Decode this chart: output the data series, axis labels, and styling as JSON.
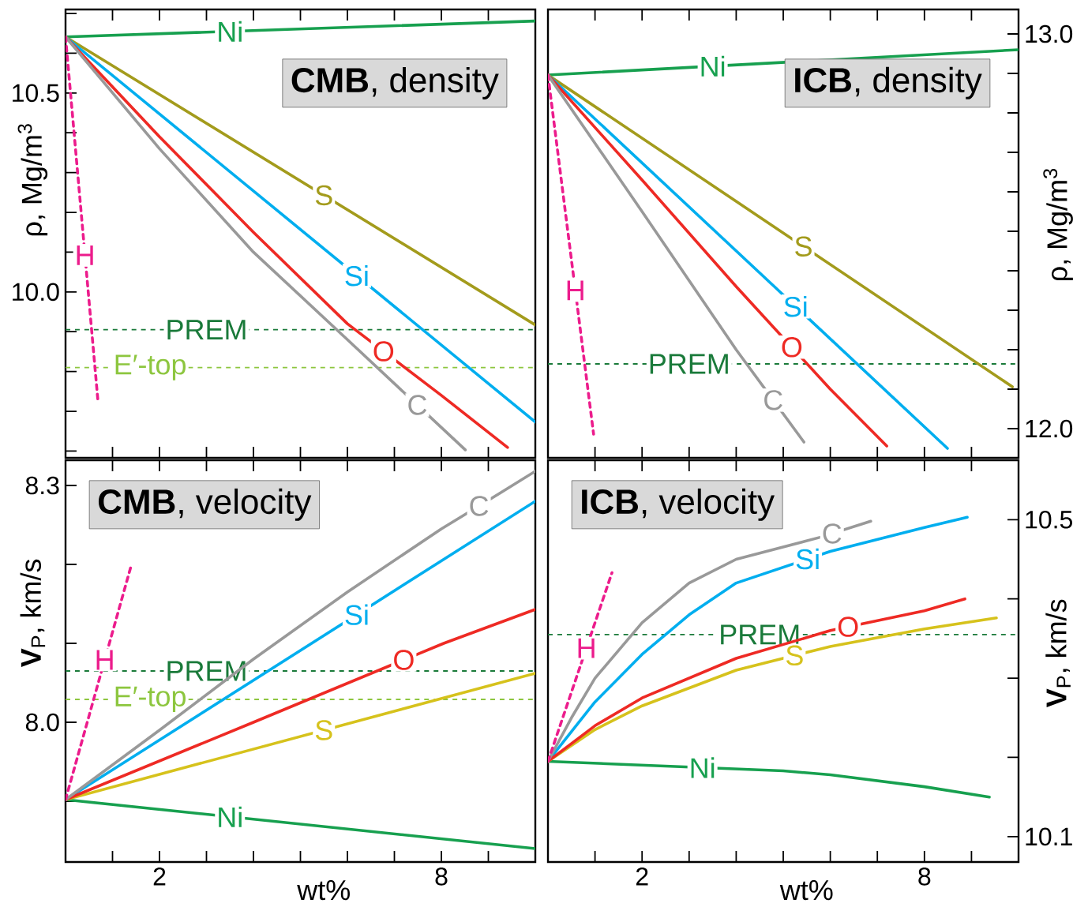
{
  "chart_data": [
    {
      "type": "line",
      "title": "**CMB**, density",
      "ylabel": "ρ, Mg/m$^{3}$",
      "xlim": [
        0,
        10
      ],
      "ylim": [
        9.583,
        10.71
      ],
      "tick_labels": "y",
      "xticks": [
        1,
        2,
        3,
        4,
        5,
        6,
        7,
        8,
        9
      ],
      "yticks": [
        {
          "value": 9.6,
          "label": null
        },
        {
          "value": 9.7,
          "label": null
        },
        {
          "value": 9.8,
          "label": null
        },
        {
          "value": 9.9,
          "label": null
        },
        {
          "value": 10.0,
          "label": "10.0"
        },
        {
          "value": 10.1,
          "label": null
        },
        {
          "value": 10.2,
          "label": null
        },
        {
          "value": 10.3,
          "label": null
        },
        {
          "value": 10.4,
          "label": null
        },
        10.5,
        {
          "value": 10.6,
          "label": null
        },
        {
          "value": 10.7,
          "label": null
        }
      ],
      "series": [
        {
          "name": "Ni",
          "color": "#17a04f",
          "x": [
            0,
            10
          ],
          "values": [
            10.641,
            10.681
          ]
        },
        {
          "name": "S",
          "color": "#a39b1c",
          "x": [
            0,
            10
          ],
          "values": [
            10.641,
            9.917
          ]
        },
        {
          "name": "Si",
          "color": "#00aeef",
          "x": [
            0,
            10
          ],
          "values": [
            10.641,
            9.673
          ]
        },
        {
          "name": "O",
          "color": "#ee2a24",
          "x": [
            0,
            2,
            4,
            6,
            8,
            9.41
          ],
          "values": [
            10.641,
            10.39,
            10.15,
            9.92,
            9.74,
            9.609
          ]
        },
        {
          "name": "C",
          "color": "#999999",
          "x": [
            0,
            2,
            4,
            6,
            8.51
          ],
          "values": [
            10.641,
            10.36,
            10.1,
            9.88,
            9.603
          ]
        },
        {
          "name": "H",
          "color": "#ec1c8c",
          "line_style": "dashed",
          "x": [
            0,
            0.69
          ],
          "values": [
            10.641,
            9.726
          ]
        }
      ],
      "ref_lines": [
        {
          "axis": "y",
          "value": 9.905,
          "label": "PREM",
          "color": "#1a7a3a",
          "line_style": "dashed"
        },
        {
          "axis": "y",
          "value": 9.81,
          "label": "E′-top",
          "color": "#8dc63f",
          "line_style": "dashed"
        }
      ]
    },
    {
      "type": "line",
      "title": "**ICB**, density",
      "ylabel": "ρ, Mg/m$^{3}$",
      "xlim": [
        0,
        10
      ],
      "ylim": [
        11.926,
        13.062
      ],
      "tick_labels": "y",
      "xticks": [
        1,
        2,
        3,
        4,
        5,
        6,
        7,
        8,
        9
      ],
      "yticks": [
        {
          "value": 12.0,
          "label": "12.0"
        },
        {
          "value": 12.1,
          "label": null
        },
        {
          "value": 12.2,
          "label": null
        },
        {
          "value": 12.3,
          "label": null
        },
        {
          "value": 12.4,
          "label": null
        },
        {
          "value": 12.5,
          "label": null
        },
        {
          "value": 12.6,
          "label": null
        },
        {
          "value": 12.7,
          "label": null
        },
        {
          "value": 12.8,
          "label": null
        },
        {
          "value": 12.9,
          "label": null
        },
        {
          "value": 13.0,
          "label": "13.0"
        }
      ],
      "series": [
        {
          "name": "Ni",
          "color": "#17a04f",
          "x": [
            0,
            10
          ],
          "values": [
            12.896,
            12.96
          ]
        },
        {
          "name": "S",
          "color": "#a39b1c",
          "x": [
            0,
            9.87
          ],
          "values": [
            12.896,
            12.106
          ]
        },
        {
          "name": "Si",
          "color": "#00aeef",
          "x": [
            0,
            8.49
          ],
          "values": [
            12.896,
            11.95
          ]
        },
        {
          "name": "O",
          "color": "#ee2a24",
          "x": [
            0,
            2,
            4,
            6,
            7.2
          ],
          "values": [
            12.896,
            12.63,
            12.36,
            12.1,
            11.956
          ]
        },
        {
          "name": "C",
          "color": "#999999",
          "x": [
            0,
            2,
            4,
            5.44
          ],
          "values": [
            12.896,
            12.55,
            12.2,
            11.966
          ]
        },
        {
          "name": "H",
          "color": "#ec1c8c",
          "line_style": "dashed",
          "x": [
            0,
            0.97
          ],
          "values": [
            12.896,
            11.986
          ]
        }
      ],
      "ref_lines": [
        {
          "axis": "y",
          "value": 12.164,
          "label": "PREM",
          "color": "#1a7a3a",
          "line_style": "dashed"
        }
      ]
    },
    {
      "type": "line",
      "title": "**CMB**, velocity",
      "ylabel": "**V**$_{P}$, km/s",
      "xlabel": "wt%",
      "xlim": [
        0,
        10
      ],
      "ylim": [
        7.823,
        8.332
      ],
      "xticks": [
        {
          "value": 1,
          "label": null
        },
        2,
        {
          "value": 3,
          "label": null
        },
        {
          "value": 4,
          "label": null
        },
        {
          "value": 5,
          "label": null
        },
        {
          "value": 6,
          "label": null
        },
        {
          "value": 7,
          "label": null
        },
        8,
        {
          "value": 9,
          "label": null
        }
      ],
      "yticks": [
        {
          "value": 7.9,
          "label": null
        },
        {
          "value": 8.0,
          "label": "8.0"
        },
        {
          "value": 8.1,
          "label": null
        },
        {
          "value": 8.2,
          "label": null
        },
        8.3
      ],
      "series": [
        {
          "name": "Ni",
          "color": "#17a04f",
          "x": [
            0,
            10
          ],
          "values": [
            7.902,
            7.84
          ]
        },
        {
          "name": "S",
          "color": "#d6c21c",
          "x": [
            0,
            10
          ],
          "values": [
            7.902,
            8.062
          ]
        },
        {
          "name": "Si",
          "color": "#00aeef",
          "x": [
            0,
            10
          ],
          "values": [
            7.902,
            8.28
          ]
        },
        {
          "name": "O",
          "color": "#ee2a24",
          "x": [
            0,
            4,
            8.05,
            10
          ],
          "values": [
            7.902,
            8.0,
            8.1,
            8.143
          ]
        },
        {
          "name": "C",
          "color": "#999999",
          "x": [
            0,
            2,
            4,
            6,
            8,
            9.24,
            10
          ],
          "values": [
            7.902,
            7.99,
            8.08,
            8.165,
            8.245,
            8.29,
            8.318
          ]
        },
        {
          "name": "H",
          "color": "#ec1c8c",
          "line_style": "dashed",
          "x": [
            0,
            1.39
          ],
          "values": [
            7.902,
            8.197
          ]
        }
      ],
      "ref_lines": [
        {
          "axis": "y",
          "value": 8.065,
          "label": "PREM",
          "color": "#1a7a3a",
          "line_style": "dashed"
        },
        {
          "axis": "y",
          "value": 8.029,
          "label": "E′-top",
          "color": "#8dc63f",
          "line_style": "dashed"
        }
      ]
    },
    {
      "type": "line",
      "title": "**ICB**, velocity",
      "ylabel": "**V**$_{P}$, km/s",
      "xlabel": "wt%",
      "xlim": [
        0,
        10
      ],
      "ylim": [
        10.068,
        10.575
      ],
      "xticks": [
        {
          "value": 1,
          "label": null
        },
        2,
        {
          "value": 3,
          "label": null
        },
        {
          "value": 4,
          "label": null
        },
        {
          "value": 5,
          "label": null
        },
        {
          "value": 6,
          "label": null
        },
        {
          "value": 7,
          "label": null
        },
        8,
        {
          "value": 9,
          "label": null
        }
      ],
      "yticks": [
        10.1,
        {
          "value": 10.2,
          "label": null
        },
        {
          "value": 10.3,
          "label": null
        },
        {
          "value": 10.4,
          "label": null
        },
        10.5
      ],
      "series": [
        {
          "name": "Ni",
          "color": "#17a04f",
          "x": [
            0,
            5,
            6,
            8,
            9.38
          ],
          "values": [
            10.195,
            10.183,
            10.178,
            10.163,
            10.15
          ]
        },
        {
          "name": "S",
          "color": "#d6c21c",
          "x": [
            0,
            1,
            2,
            4,
            6,
            8,
            9.53
          ],
          "values": [
            10.195,
            10.235,
            10.265,
            10.31,
            10.34,
            10.362,
            10.376
          ]
        },
        {
          "name": "Si",
          "color": "#00aeef",
          "x": [
            0,
            1,
            2,
            3,
            4,
            6,
            8,
            8.91
          ],
          "values": [
            10.195,
            10.27,
            10.33,
            10.38,
            10.42,
            10.46,
            10.49,
            10.503
          ]
        },
        {
          "name": "O",
          "color": "#ee2a24",
          "x": [
            0,
            1,
            2,
            4,
            6,
            8,
            8.86
          ],
          "values": [
            10.195,
            10.24,
            10.275,
            10.325,
            10.36,
            10.385,
            10.4
          ]
        },
        {
          "name": "C",
          "color": "#999999",
          "x": [
            0,
            0.5,
            1,
            2,
            3,
            4,
            5.8,
            6.86
          ],
          "values": [
            10.195,
            10.25,
            10.3,
            10.37,
            10.42,
            10.45,
            10.478,
            10.498
          ]
        },
        {
          "name": "H",
          "color": "#ec1c8c",
          "line_style": "dashed",
          "x": [
            0,
            1.36
          ],
          "values": [
            10.195,
            10.433
          ]
        }
      ],
      "ref_lines": [
        {
          "axis": "y",
          "value": 10.355,
          "label": "PREM",
          "color": "#1a7a3a",
          "line_style": "dashed"
        }
      ]
    }
  ]
}
